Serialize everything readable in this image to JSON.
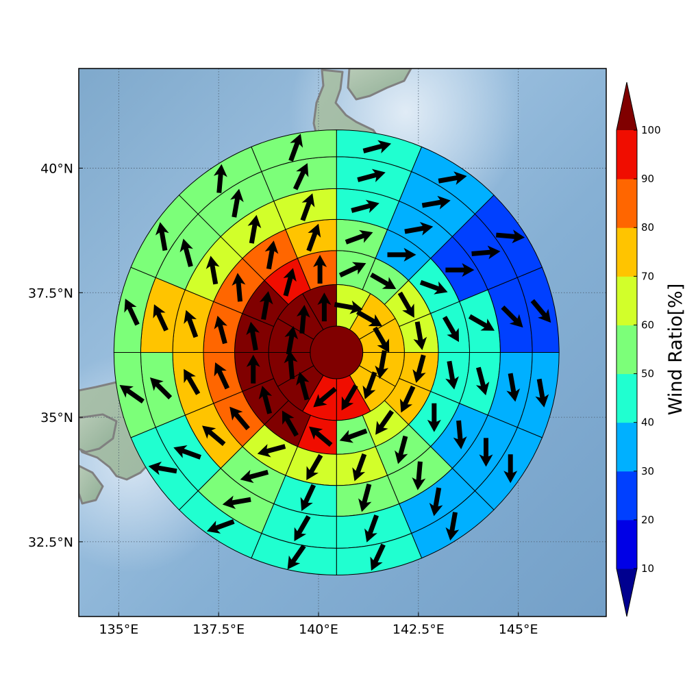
{
  "chart_data": {
    "type": "heatmap",
    "subtype": "polar-sector-wind-map",
    "title": "",
    "map": {
      "projection": "lat-lon",
      "xlim": [
        134,
        147.2
      ],
      "ylim": [
        31,
        42
      ],
      "x_ticks": [
        {
          "value": 135,
          "label": "135°E"
        },
        {
          "value": 137.5,
          "label": "137.5°E"
        },
        {
          "value": 140,
          "label": "140°E"
        },
        {
          "value": 142.5,
          "label": "142.5°E"
        },
        {
          "value": 145,
          "label": "145°E"
        }
      ],
      "y_ticks": [
        {
          "value": 32.5,
          "label": "32.5°N"
        },
        {
          "value": 35,
          "label": "35°N"
        },
        {
          "value": 37.5,
          "label": "37.5°N"
        },
        {
          "value": 40,
          "label": "40°N"
        }
      ],
      "grid": "dotted",
      "background": "shaded-relief with coastlines",
      "center": {
        "lon": 140.45,
        "lat": 36.3
      }
    },
    "polar_grid": {
      "ring_edges_deg": [
        0.66,
        1.7,
        2.55,
        3.33,
        4.1,
        4.9,
        5.57
      ],
      "sector_count": 16,
      "sectors_start": "north",
      "sector_order": "clockwise"
    },
    "colorbar": {
      "label": "Wind Ratio[%]",
      "ticks": [
        10,
        20,
        30,
        40,
        50,
        60,
        70,
        80,
        90,
        100
      ],
      "levels": [
        {
          "range": "<10",
          "color": "#00008f"
        },
        {
          "range": "10-20",
          "color": "#0000e6"
        },
        {
          "range": "20-30",
          "color": "#0040ff"
        },
        {
          "range": "30-40",
          "color": "#00b0ff"
        },
        {
          "range": "40-50",
          "color": "#20ffd0"
        },
        {
          "range": "50-60",
          "color": "#7cff79"
        },
        {
          "range": "60-70",
          "color": "#d2ff2a"
        },
        {
          "range": "70-80",
          "color": "#ffc400"
        },
        {
          "range": "80-90",
          "color": "#ff6600"
        },
        {
          "range": "90-100",
          "color": "#f00d00"
        },
        {
          "range": ">100",
          "color": "#800000"
        }
      ],
      "extend": "both"
    },
    "center_cell": {
      "value": 105,
      "arrow": null
    },
    "rings": [
      {
        "values": [
          65,
          75,
          75,
          75,
          75,
          95,
          95,
          105,
          105,
          105,
          105,
          105
        ],
        "arrow_dirs": [
          100,
          120,
          150,
          190,
          200,
          210,
          230,
          345,
          355,
          10,
          5,
          0
        ],
        "sectors": 12
      },
      {
        "values": [
          55,
          55,
          65,
          65,
          75,
          75,
          65,
          55,
          95,
          105,
          105,
          105,
          105,
          105,
          95,
          85
        ],
        "arrow_dirs": [
          65,
          120,
          150,
          170,
          195,
          205,
          215,
          250,
          310,
          330,
          345,
          0,
          350,
          10,
          15,
          0
        ],
        "sectors": 16
      },
      {
        "values": [
          55,
          35,
          45,
          45,
          45,
          45,
          55,
          65,
          65,
          65,
          85,
          85,
          85,
          85,
          85,
          75
        ],
        "arrow_dirs": [
          70,
          90,
          110,
          150,
          170,
          180,
          195,
          200,
          210,
          255,
          320,
          335,
          345,
          355,
          10,
          20
        ],
        "sectors": 16
      },
      {
        "values": [
          45,
          35,
          25,
          45,
          45,
          35,
          55,
          55,
          45,
          55,
          75,
          75,
          75,
          65,
          65,
          65
        ],
        "arrow_dirs": [
          75,
          80,
          90,
          120,
          165,
          175,
          185,
          195,
          205,
          255,
          310,
          330,
          340,
          350,
          10,
          20
        ],
        "sectors": 16
      },
      {
        "values": [
          45,
          35,
          25,
          25,
          35,
          35,
          35,
          45,
          45,
          55,
          45,
          55,
          75,
          55,
          55,
          55
        ],
        "arrow_dirs": [
          75,
          80,
          85,
          135,
          170,
          180,
          190,
          200,
          210,
          260,
          290,
          315,
          335,
          345,
          10,
          25
        ],
        "sectors": 16
      },
      {
        "values": [
          45,
          35,
          25,
          25,
          35,
          35,
          35,
          45,
          45,
          45,
          45,
          55,
          55,
          55,
          55,
          55
        ],
        "arrow_dirs": [
          75,
          80,
          95,
          140,
          170,
          180,
          190,
          205,
          215,
          250,
          280,
          305,
          335,
          350,
          5,
          20
        ],
        "sectors": 16
      }
    ]
  }
}
